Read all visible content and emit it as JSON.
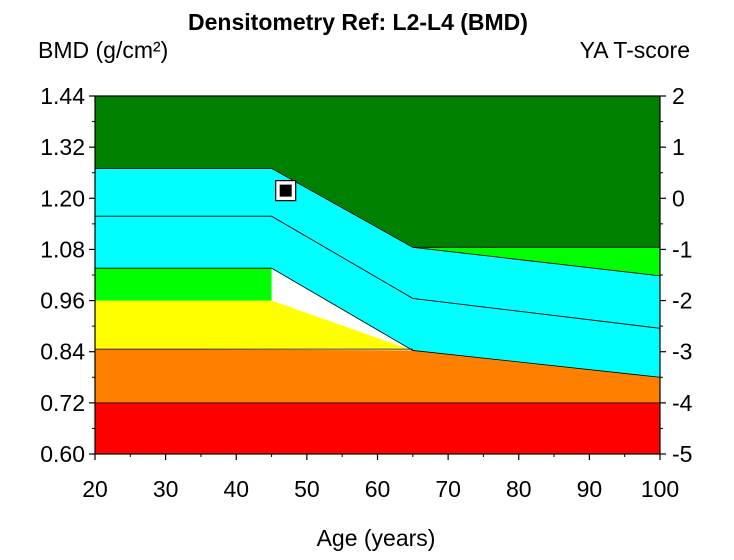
{
  "chart_data": {
    "type": "area",
    "title": "Densitometry Ref: L2-L4 (BMD)",
    "ylabel": "BMD (g/cm²)",
    "y2label": "YA T-score",
    "xlabel": "Age (years)",
    "xlim": [
      20,
      100
    ],
    "ylim": [
      0.6,
      1.44
    ],
    "y2lim": [
      -5,
      2
    ],
    "x_ticks": [
      "20",
      "30",
      "40",
      "50",
      "60",
      "70",
      "80",
      "90",
      "100"
    ],
    "y_ticks": [
      "1.44",
      "1.32",
      "1.20",
      "1.08",
      "0.96",
      "0.84",
      "0.72",
      "0.60"
    ],
    "y2_ticks": [
      "2",
      "1",
      "0",
      "-1",
      "-2",
      "-3",
      "-4",
      "-5"
    ],
    "grid": false,
    "bands": [
      {
        "color": "#008000",
        "lower": [
          [
            20,
            1.27
          ],
          [
            45,
            1.27
          ],
          [
            65,
            1.085
          ],
          [
            100,
            1.085
          ]
        ],
        "upper_value": 1.44
      },
      {
        "color": "#00ff00",
        "lower": [
          [
            65,
            1.085
          ],
          [
            100,
            1.018
          ]
        ],
        "upper": [
          [
            65,
            1.085
          ],
          [
            100,
            1.085
          ]
        ]
      },
      {
        "color": "#00ffff",
        "lower": [
          [
            20,
            1.036
          ],
          [
            45,
            1.036
          ],
          [
            65,
            0.843
          ],
          [
            100,
            0.78
          ]
        ],
        "upper": [
          [
            20,
            1.27
          ],
          [
            45,
            1.27
          ],
          [
            65,
            1.085
          ],
          [
            100,
            1.018
          ]
        ]
      },
      {
        "color": "#00ff00",
        "lower": [
          [
            20,
            0.96
          ],
          [
            45,
            0.96
          ]
        ],
        "upper": [
          [
            20,
            1.036
          ],
          [
            45,
            1.036
          ]
        ]
      },
      {
        "color": "#ffff00",
        "lower": [
          [
            20,
            0.846
          ],
          [
            65,
            0.846
          ]
        ],
        "upper": [
          [
            20,
            0.96
          ],
          [
            45,
            0.96
          ],
          [
            65,
            0.843
          ]
        ]
      },
      {
        "color": "#ff8000",
        "lower": [
          [
            20,
            0.72
          ],
          [
            100,
            0.72
          ]
        ],
        "upper": [
          [
            20,
            0.846
          ],
          [
            65,
            0.843
          ],
          [
            100,
            0.78
          ]
        ]
      },
      {
        "color": "#ff0000",
        "lower": [
          [
            20,
            0.6
          ],
          [
            100,
            0.6
          ]
        ],
        "upper": [
          [
            20,
            0.72
          ],
          [
            100,
            0.72
          ]
        ]
      }
    ],
    "reference_line": [
      [
        20,
        1.158
      ],
      [
        45,
        1.158
      ],
      [
        65,
        0.965
      ],
      [
        100,
        0.895
      ]
    ],
    "boundary_lines": [
      [
        [
          20,
          1.27
        ],
        [
          45,
          1.27
        ],
        [
          65,
          1.085
        ],
        [
          100,
          1.085
        ]
      ],
      [
        [
          65,
          1.085
        ],
        [
          100,
          1.018
        ]
      ],
      [
        [
          20,
          1.036
        ],
        [
          45,
          1.036
        ],
        [
          65,
          0.843
        ],
        [
          100,
          0.78
        ]
      ],
      [
        [
          20,
          0.846
        ],
        [
          65,
          0.846
        ]
      ],
      [
        [
          20,
          0.72
        ],
        [
          100,
          0.72
        ]
      ]
    ],
    "patient_point": {
      "x": 47,
      "y": 1.218
    }
  }
}
